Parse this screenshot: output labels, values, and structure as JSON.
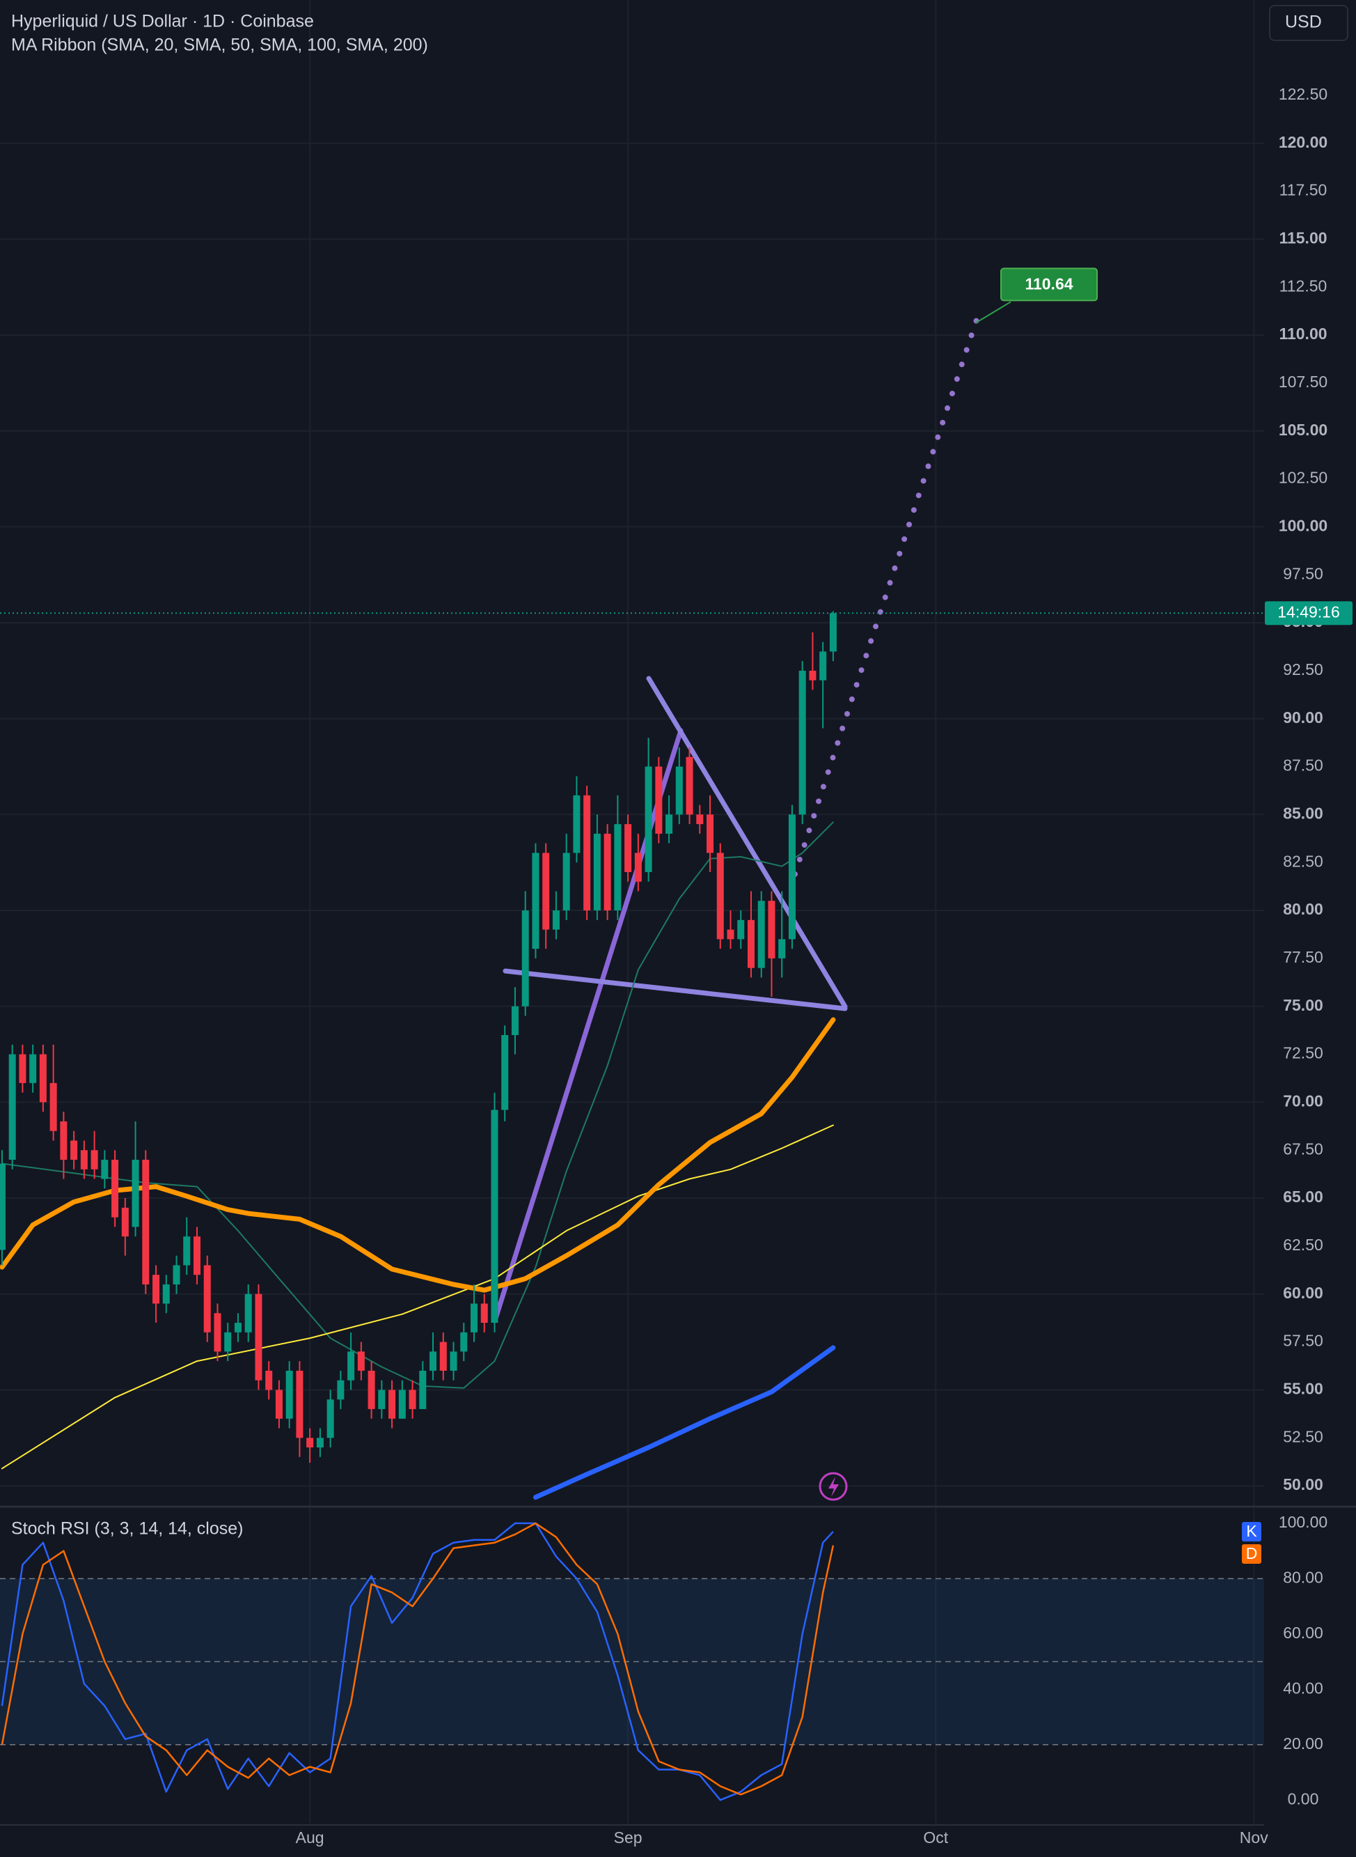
{
  "header": {
    "title": "Hyperliquid / US Dollar · 1D · Coinbase",
    "currency": "USD"
  },
  "chart_data": [
    {
      "type": "candlestick",
      "title": "MA Ribbon (SMA, 20, SMA, 50, SMA, 100, SMA, 200)",
      "x": [
        1,
        2,
        3,
        4,
        5,
        6,
        7,
        8,
        9,
        10,
        11,
        12,
        13,
        14,
        15,
        16,
        17,
        18,
        19,
        20,
        21,
        22,
        23,
        24,
        25,
        26,
        27,
        28,
        29,
        30,
        31,
        32,
        33,
        34,
        35,
        36,
        37,
        38,
        39,
        40,
        41,
        42,
        43,
        44,
        45,
        46,
        47,
        48,
        49,
        50,
        51,
        52,
        53,
        54,
        55,
        56,
        57,
        58,
        59,
        60,
        61,
        62,
        63,
        64,
        65,
        66,
        67,
        68,
        69,
        70,
        71,
        72,
        73,
        74,
        75,
        76,
        77,
        78,
        79,
        80,
        81,
        82
      ],
      "open": [
        62.3,
        67,
        72.5,
        71,
        72.5,
        71,
        69,
        68,
        67.5,
        67.5,
        66,
        67,
        64.5,
        63.5,
        67,
        61,
        59.5,
        60.5,
        61.5,
        63,
        61.5,
        59,
        57,
        58,
        58,
        60,
        56,
        55,
        53.5,
        56,
        52.5,
        52,
        52.5,
        54.5,
        55.5,
        57,
        56,
        54,
        55,
        53.5,
        55,
        54,
        56,
        57.5,
        56,
        57,
        58,
        59.5,
        58.5,
        69.6,
        73.5,
        75,
        78,
        83,
        79,
        80,
        83,
        86,
        80,
        84,
        80,
        84.5,
        83,
        82,
        87.5,
        84,
        85,
        88,
        85,
        85,
        83,
        79,
        78.5,
        79.5,
        77,
        80.5,
        77.5,
        78.5,
        85,
        92.5,
        92,
        93.5
      ],
      "high": [
        67.5,
        73,
        73,
        73,
        73,
        73,
        69.5,
        68.5,
        68,
        68.5,
        67.5,
        67.5,
        65,
        69,
        67.5,
        61.5,
        61,
        62,
        64,
        63.5,
        62,
        59.5,
        58.5,
        59,
        60.5,
        60.5,
        56.5,
        55.5,
        56.5,
        56.5,
        53,
        53,
        55,
        56,
        58,
        57.5,
        56.5,
        55.5,
        55.5,
        55.5,
        55.5,
        56.5,
        58,
        58,
        57.5,
        58.5,
        60.5,
        60,
        70.5,
        74,
        76,
        81,
        83.5,
        83.5,
        81,
        84,
        87,
        86.5,
        85,
        84.5,
        86,
        85,
        84,
        89,
        88,
        86,
        88.5,
        88.5,
        85.5,
        86,
        83.5,
        80,
        80,
        81,
        81,
        81,
        81,
        85.5,
        93,
        94.5,
        94,
        95.6
      ],
      "low": [
        61.5,
        66.5,
        70.5,
        70.5,
        69.5,
        68,
        66,
        66.5,
        66,
        66,
        65.5,
        63.5,
        62,
        63,
        60,
        58.5,
        59,
        60,
        61,
        60.5,
        57.5,
        56.5,
        56.5,
        57.5,
        57.5,
        55,
        54.5,
        53,
        53,
        51.5,
        51.2,
        51.5,
        52,
        54,
        55,
        55.5,
        53.5,
        53.5,
        53,
        53.5,
        53.5,
        54,
        55.5,
        55.5,
        55.5,
        56.5,
        57.5,
        58,
        58,
        69,
        72.5,
        74.5,
        77.5,
        78,
        78.5,
        79.5,
        82.5,
        79.5,
        79.5,
        79.5,
        79.5,
        81.5,
        81,
        81.5,
        83.5,
        83.5,
        84.5,
        84.5,
        84,
        82,
        78,
        78,
        78,
        76.5,
        76.5,
        75.5,
        76.5,
        78,
        84.5,
        91.5,
        89.5,
        93
      ],
      "close": [
        66.8,
        72.5,
        71,
        72.5,
        70,
        68.5,
        67,
        67,
        66.5,
        66.5,
        67,
        64,
        63,
        67,
        60.5,
        59.5,
        60.5,
        61.5,
        63,
        61,
        58,
        57,
        58,
        58.5,
        60,
        55.5,
        55,
        53.5,
        56,
        52.5,
        52,
        52.5,
        54.5,
        55.5,
        57,
        56,
        54,
        55,
        53.5,
        55,
        54,
        56,
        57,
        56,
        57,
        58,
        59.5,
        58.5,
        69.6,
        73.5,
        75,
        80,
        83,
        79,
        80,
        83,
        86,
        80,
        84,
        80,
        84.5,
        82,
        81.5,
        87.5,
        84,
        85,
        87.5,
        85,
        84.5,
        83,
        78.5,
        78.5,
        79.5,
        77,
        80.5,
        77.5,
        78.5,
        85,
        92.5,
        92,
        93.5,
        95.5
      ],
      "up_color": "#089981",
      "down_color": "#f23645",
      "series": [
        {
          "color": "#1d7a62",
          "line_width": 2,
          "x": [
            1,
            8,
            15,
            20,
            24,
            28,
            33,
            38,
            42,
            46,
            49,
            53,
            56,
            60,
            63,
            67,
            70,
            73,
            77,
            79,
            82
          ],
          "values": [
            66.8,
            66.3,
            65.8,
            65.6,
            63.3,
            60.8,
            57.7,
            56.2,
            55.2,
            55.1,
            56.5,
            61.4,
            66.4,
            71.9,
            76.9,
            80.6,
            82.7,
            82.8,
            82.3,
            83,
            84.6
          ]
        },
        {
          "color": "#ffeb3b",
          "line_width": 2,
          "x": [
            1,
            12,
            20,
            31,
            40,
            49,
            56,
            63,
            68,
            72,
            77,
            82
          ],
          "values": [
            50.9,
            54.6,
            56.5,
            57.7,
            58.95,
            60.8,
            63.3,
            65.1,
            66,
            66.5,
            67.6,
            68.8
          ]
        },
        {
          "color": "#ff9800",
          "line_width": 7,
          "x": [
            1,
            4,
            8,
            12,
            16,
            19,
            23,
            25,
            30,
            34,
            39,
            45,
            48,
            52,
            56,
            61,
            65,
            70,
            75,
            78,
            82
          ],
          "values": [
            61.4,
            63.6,
            64.8,
            65.4,
            65.6,
            65.1,
            64.4,
            64.2,
            63.9,
            63,
            61.3,
            60.5,
            60.2,
            60.8,
            62,
            63.6,
            65.7,
            67.9,
            69.4,
            71.3,
            74.3
          ]
        },
        {
          "color": "#2962ff",
          "line_width": 7,
          "x": [
            53,
            58,
            64,
            70,
            76,
            82
          ],
          "values": [
            49.4,
            50.6,
            52,
            53.5,
            54.9,
            57.2
          ]
        }
      ],
      "annotations": [
        110.64
      ],
      "countdown": "14:49:16",
      "xlim": [
        0.8,
        124
      ],
      "xticks": [
        {
          "value": 31,
          "label": "Aug"
        },
        {
          "value": 62,
          "label": "Sep"
        },
        {
          "value": 92,
          "label": "Oct"
        },
        {
          "value": 123,
          "label": "Nov"
        }
      ],
      "ylim": [
        48.95,
        127.47
      ],
      "yticks": [
        {
          "value": 50,
          "label": "50.00"
        },
        {
          "value": 52.5,
          "label": "52.50"
        },
        {
          "value": 55,
          "label": "55.00"
        },
        {
          "value": 57.5,
          "label": "57.50"
        },
        {
          "value": 60,
          "label": "60.00"
        },
        {
          "value": 62.5,
          "label": "62.50"
        },
        {
          "value": 65,
          "label": "65.00"
        },
        {
          "value": 67.5,
          "label": "67.50"
        },
        {
          "value": 70,
          "label": "70.00"
        },
        {
          "value": 72.5,
          "label": "72.50"
        },
        {
          "value": 75,
          "label": "75.00"
        },
        {
          "value": 77.5,
          "label": "77.50"
        },
        {
          "value": 80,
          "label": "80.00"
        },
        {
          "value": 82.5,
          "label": "82.50"
        },
        {
          "value": 85,
          "label": "85.00"
        },
        {
          "value": 87.5,
          "label": "87.50"
        },
        {
          "value": 90,
          "label": "90.00"
        },
        {
          "value": 92.5,
          "label": "92.50"
        },
        {
          "value": 95,
          "label": "95.00"
        },
        {
          "value": 97.5,
          "label": "97.50"
        },
        {
          "value": 100,
          "label": "100.00"
        },
        {
          "value": 102.5,
          "label": "102.50"
        },
        {
          "value": 105,
          "label": "105.00"
        },
        {
          "value": 107.5,
          "label": "107.50"
        },
        {
          "value": 110,
          "label": "110.00"
        },
        {
          "value": 112.5,
          "label": "112.50"
        },
        {
          "value": 115,
          "label": "115.00"
        },
        {
          "value": 117.5,
          "label": "117.50"
        },
        {
          "value": 120,
          "label": "120.00"
        },
        {
          "value": 122.5,
          "label": "122.50"
        }
      ],
      "grid": true
    },
    {
      "type": "line",
      "title": "Stoch RSI (3, 3, 14, 14, close)",
      "x": [
        1,
        3,
        5,
        7,
        9,
        11,
        13,
        15,
        17,
        19,
        21,
        23,
        25,
        27,
        29,
        31,
        33,
        35,
        37,
        39,
        41,
        43,
        45,
        47,
        49,
        51,
        53,
        55,
        57,
        59,
        61,
        63,
        65,
        67,
        69,
        71,
        73,
        75,
        77,
        79,
        81,
        82
      ],
      "series": [
        {
          "name": "K",
          "color": "#2962ff",
          "values": [
            34,
            85,
            93,
            72,
            42,
            34,
            22,
            24,
            3,
            18,
            22,
            4,
            15,
            5,
            17,
            10,
            15,
            70,
            81,
            64,
            73,
            89,
            93,
            94,
            94,
            100,
            100,
            88,
            80,
            68,
            45,
            18,
            11,
            11,
            9,
            0,
            3,
            9,
            13,
            60,
            93,
            97
          ]
        },
        {
          "name": "D",
          "color": "#ff6d00",
          "values": [
            20,
            60,
            85,
            90,
            70,
            50,
            35,
            23,
            18,
            9,
            18,
            12,
            8,
            15,
            9,
            12,
            10,
            35,
            78,
            75,
            70,
            80,
            91,
            92,
            93,
            96,
            100,
            95,
            85,
            78,
            60,
            32,
            14,
            11,
            10,
            5,
            2,
            5,
            9,
            30,
            75,
            92
          ]
        }
      ],
      "levels": [
        80,
        50,
        20
      ],
      "band": [
        20,
        80
      ],
      "ylim": [
        -8.5,
        105.5
      ],
      "yticks": [
        {
          "value": 0,
          "label": "0.00"
        },
        {
          "value": 20,
          "label": "20.00"
        },
        {
          "value": 40,
          "label": "40.00"
        },
        {
          "value": 60,
          "label": "60.00"
        },
        {
          "value": 80,
          "label": "80.00"
        },
        {
          "value": 100,
          "label": "100.00"
        }
      ],
      "grid": true
    }
  ]
}
